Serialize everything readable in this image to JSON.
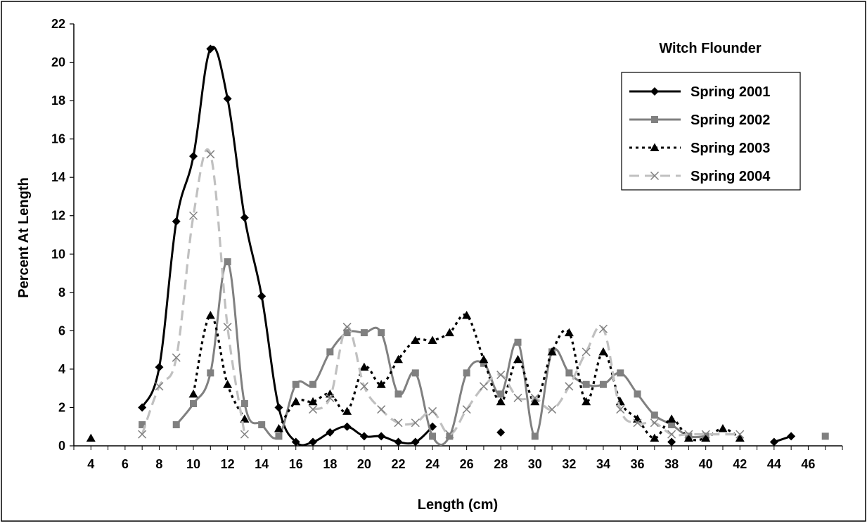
{
  "chart_data": {
    "type": "line",
    "title": "Witch Flounder",
    "xlabel": "Length (cm)",
    "ylabel": "Percent At Length",
    "xlim": [
      3,
      48
    ],
    "ylim": [
      0,
      22
    ],
    "x_ticks": [
      4,
      6,
      8,
      10,
      12,
      14,
      16,
      18,
      20,
      22,
      24,
      26,
      28,
      30,
      32,
      34,
      36,
      38,
      40,
      42,
      44,
      46
    ],
    "y_ticks": [
      0,
      2,
      4,
      6,
      8,
      10,
      12,
      14,
      16,
      18,
      20,
      22
    ],
    "grid": false,
    "legend_position": "top-right",
    "series": [
      {
        "name": "Spring 2001",
        "color": "#000000",
        "line_style": "solid",
        "marker": "diamond",
        "segments": [
          [
            [
              7,
              2.0
            ],
            [
              8,
              4.1
            ],
            [
              9,
              11.7
            ],
            [
              10,
              15.1
            ],
            [
              11,
              20.7
            ],
            [
              12,
              18.1
            ],
            [
              13,
              11.9
            ],
            [
              14,
              7.8
            ],
            [
              15,
              2.0
            ],
            [
              16,
              0.2
            ],
            [
              17,
              0.2
            ],
            [
              18,
              0.7
            ],
            [
              19,
              1.0
            ],
            [
              20,
              0.5
            ],
            [
              21,
              0.5
            ],
            [
              22,
              0.2
            ],
            [
              23,
              0.2
            ],
            [
              24,
              1.0
            ]
          ],
          [
            [
              28,
              0.7
            ]
          ],
          [
            [
              38,
              0.2
            ]
          ],
          [
            [
              44,
              0.2
            ],
            [
              45,
              0.5
            ]
          ]
        ]
      },
      {
        "name": "Spring 2002",
        "color": "#808080",
        "line_style": "solid",
        "marker": "square",
        "segments": [
          [
            [
              7,
              1.1
            ]
          ],
          [
            [
              9,
              1.1
            ],
            [
              10,
              2.2
            ],
            [
              11,
              3.8
            ],
            [
              12,
              9.6
            ],
            [
              13,
              2.2
            ],
            [
              14,
              1.1
            ],
            [
              15,
              0.5
            ],
            [
              16,
              3.2
            ],
            [
              17,
              3.2
            ],
            [
              18,
              4.9
            ],
            [
              19,
              5.9
            ],
            [
              20,
              5.9
            ],
            [
              21,
              5.9
            ],
            [
              22,
              2.7
            ],
            [
              23,
              3.8
            ],
            [
              24,
              0.5
            ],
            [
              25,
              0.5
            ],
            [
              26,
              3.8
            ],
            [
              27,
              4.3
            ],
            [
              28,
              2.7
            ],
            [
              29,
              5.4
            ],
            [
              30,
              0.5
            ],
            [
              31,
              4.9
            ],
            [
              32,
              3.8
            ],
            [
              33,
              3.2
            ],
            [
              34,
              3.2
            ],
            [
              35,
              3.8
            ],
            [
              36,
              2.7
            ],
            [
              37,
              1.6
            ],
            [
              38,
              1.1
            ],
            [
              39,
              0.5
            ],
            [
              40,
              0.5
            ]
          ],
          [
            [
              47,
              0.5
            ]
          ]
        ]
      },
      {
        "name": "Spring 2003",
        "color": "#000000",
        "line_style": "dotted",
        "marker": "triangle",
        "segments": [
          [
            [
              4,
              0.4
            ]
          ],
          [
            [
              10,
              2.7
            ],
            [
              11,
              6.8
            ],
            [
              12,
              3.2
            ],
            [
              13,
              1.4
            ],
            [
              14,
              null
            ]
          ],
          [
            [
              15,
              0.9
            ],
            [
              16,
              2.3
            ],
            [
              17,
              2.3
            ],
            [
              18,
              2.7
            ],
            [
              19,
              1.8
            ],
            [
              20,
              4.1
            ],
            [
              21,
              3.2
            ],
            [
              22,
              4.5
            ],
            [
              23,
              5.5
            ],
            [
              24,
              5.5
            ],
            [
              25,
              5.9
            ],
            [
              26,
              6.8
            ],
            [
              27,
              4.5
            ],
            [
              28,
              2.3
            ],
            [
              29,
              4.5
            ],
            [
              30,
              2.3
            ],
            [
              31,
              4.9
            ],
            [
              32,
              5.9
            ],
            [
              33,
              2.3
            ],
            [
              34,
              4.9
            ],
            [
              35,
              2.3
            ],
            [
              36,
              1.4
            ],
            [
              37,
              0.4
            ],
            [
              38,
              1.4
            ],
            [
              39,
              0.4
            ],
            [
              40,
              0.4
            ],
            [
              41,
              0.9
            ],
            [
              42,
              0.4
            ]
          ]
        ]
      },
      {
        "name": "Spring 2004",
        "color": "#c0c0c0",
        "line_style": "dashed",
        "marker": "x",
        "segments": [
          [
            [
              7,
              0.6
            ],
            [
              8,
              3.1
            ],
            [
              9,
              4.6
            ],
            [
              10,
              12.0
            ],
            [
              11,
              15.2
            ],
            [
              12,
              6.2
            ],
            [
              13,
              0.6
            ]
          ],
          [
            [
              17,
              1.9
            ],
            [
              18,
              2.5
            ],
            [
              19,
              6.2
            ],
            [
              20,
              3.1
            ],
            [
              21,
              1.9
            ],
            [
              22,
              1.2
            ],
            [
              23,
              1.2
            ],
            [
              24,
              1.8
            ],
            [
              25,
              0.6
            ],
            [
              26,
              1.9
            ],
            [
              27,
              3.1
            ],
            [
              28,
              3.7
            ],
            [
              29,
              2.5
            ],
            [
              30,
              2.5
            ],
            [
              31,
              1.9
            ],
            [
              32,
              3.1
            ],
            [
              33,
              4.9
            ],
            [
              34,
              6.1
            ],
            [
              35,
              1.9
            ],
            [
              36,
              1.2
            ],
            [
              37,
              1.2
            ],
            [
              38,
              0.6
            ],
            [
              39,
              0.6
            ],
            [
              40,
              0.6
            ],
            [
              41,
              null
            ],
            [
              42,
              0.6
            ]
          ]
        ]
      }
    ]
  }
}
